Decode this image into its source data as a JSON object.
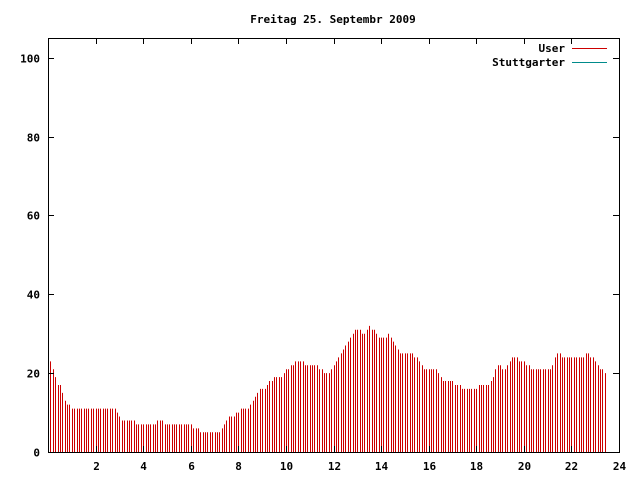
{
  "chart_data": {
    "type": "bar",
    "title": "Freitag 25. Septembr 2009",
    "xlabel": "",
    "ylabel": "",
    "xlim": [
      0,
      24
    ],
    "ylim": [
      0,
      105
    ],
    "x_ticks": [
      2,
      4,
      6,
      8,
      10,
      12,
      14,
      16,
      18,
      20,
      22,
      24
    ],
    "y_ticks": [
      0,
      20,
      40,
      60,
      80,
      100
    ],
    "grid": false,
    "legend_position": "top-right",
    "series": [
      {
        "name": "User",
        "color": "#cc0000",
        "interval_hours": 0.1,
        "values": [
          24,
          23,
          21,
          19,
          17,
          17,
          15,
          13,
          12,
          12,
          11,
          11,
          11,
          11,
          11,
          11,
          11,
          11,
          11,
          11,
          11,
          11,
          11,
          11,
          11,
          11,
          11,
          11,
          11,
          10,
          9,
          8,
          8,
          8,
          8,
          8,
          8,
          7,
          7,
          7,
          7,
          7,
          7,
          7,
          7,
          7,
          8,
          8,
          8,
          7,
          7,
          7,
          7,
          7,
          7,
          7,
          7,
          7,
          7,
          7,
          7,
          6,
          6,
          6,
          5,
          5,
          5,
          5,
          5,
          5,
          5,
          5,
          5,
          6,
          7,
          8,
          9,
          9,
          9,
          10,
          10,
          11,
          11,
          11,
          11,
          12,
          13,
          14,
          15,
          16,
          16,
          16,
          17,
          18,
          18,
          19,
          19,
          19,
          19,
          20,
          21,
          21,
          22,
          22,
          23,
          23,
          23,
          23,
          22,
          22,
          22,
          22,
          22,
          22,
          21,
          21,
          20,
          20,
          20,
          21,
          22,
          23,
          24,
          25,
          26,
          27,
          28,
          29,
          30,
          31,
          31,
          31,
          30,
          30,
          31,
          32,
          31,
          31,
          30,
          29,
          29,
          29,
          29,
          30,
          29,
          28,
          27,
          26,
          25,
          25,
          25,
          25,
          25,
          25,
          24,
          24,
          23,
          22,
          21,
          21,
          21,
          21,
          21,
          21,
          20,
          19,
          18,
          18,
          18,
          18,
          18,
          17,
          17,
          17,
          16,
          16,
          16,
          16,
          16,
          16,
          16,
          17,
          17,
          17,
          17,
          17,
          18,
          19,
          21,
          22,
          22,
          21,
          21,
          22,
          23,
          24,
          24,
          24,
          23,
          23,
          23,
          22,
          22,
          21,
          21,
          21,
          21,
          21,
          21,
          21,
          21,
          21,
          22,
          24,
          25,
          25,
          24,
          24,
          24,
          24,
          24,
          24,
          24,
          24,
          24,
          24,
          25,
          25,
          24,
          24,
          23,
          22,
          21,
          21,
          20
        ]
      },
      {
        "name": "Stuttgarter",
        "color": "#008b8b",
        "values": []
      }
    ]
  }
}
